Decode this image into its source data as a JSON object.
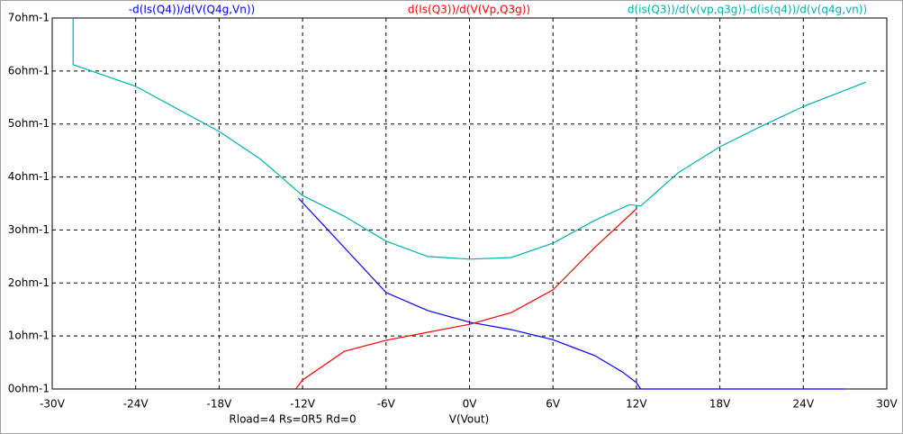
{
  "chart_data": {
    "type": "line",
    "xlabel": "V(Vout)",
    "annotation": "Rload=4 Rs=0R5 Rd=0",
    "xlim": [
      -30,
      30
    ],
    "ylim": [
      0,
      7
    ],
    "xticks": [
      {
        "value": -30,
        "label": "-30V"
      },
      {
        "value": -24,
        "label": "-24V"
      },
      {
        "value": -18,
        "label": "-18V"
      },
      {
        "value": -12,
        "label": "-12V"
      },
      {
        "value": -6,
        "label": "-6V"
      },
      {
        "value": 0,
        "label": "0V"
      },
      {
        "value": 6,
        "label": "6V"
      },
      {
        "value": 12,
        "label": "12V"
      },
      {
        "value": 18,
        "label": "18V"
      },
      {
        "value": 24,
        "label": "24V"
      },
      {
        "value": 30,
        "label": "30V"
      }
    ],
    "yticks": [
      {
        "value": 0,
        "label": "0ohm-1"
      },
      {
        "value": 1,
        "label": "1ohm-1"
      },
      {
        "value": 2,
        "label": "2ohm-1"
      },
      {
        "value": 3,
        "label": "3ohm-1"
      },
      {
        "value": 4,
        "label": "4ohm-1"
      },
      {
        "value": 5,
        "label": "5ohm-1"
      },
      {
        "value": 6,
        "label": "6ohm-1"
      },
      {
        "value": 7,
        "label": "7ohm-1"
      }
    ],
    "grid": true,
    "series": [
      {
        "name": "-d(Is(Q4))/d(V(Q4g,Vn))",
        "color": "#0000ff",
        "x": [
          -12.3,
          -9,
          -6,
          -3,
          0,
          3,
          6,
          9,
          11,
          12,
          12.3,
          20,
          27
        ],
        "values": [
          3.6,
          2.67,
          1.82,
          1.48,
          1.26,
          1.12,
          0.93,
          0.63,
          0.32,
          0.12,
          0,
          0,
          0
        ]
      },
      {
        "name": "d(Is(Q3))/d(V(Vp,Q3g))",
        "color": "#ff0000",
        "x": [
          -12.5,
          -12,
          -9,
          -6,
          -3,
          0,
          3,
          6,
          9,
          12
        ],
        "values": [
          0,
          0.17,
          0.71,
          0.92,
          1.07,
          1.22,
          1.44,
          1.87,
          2.67,
          3.4
        ]
      },
      {
        "name": "d(is(Q3))/d(v(vp,q3g))-d(is(q4))/d(v(q4g,vn))",
        "color": "#00b0b0",
        "x": [
          -28.5,
          -28.5,
          -24,
          -18,
          -15,
          -12,
          -9,
          -6,
          -3,
          0,
          3,
          6,
          9,
          11.5,
          12.3,
          15,
          18,
          21,
          24,
          28.5
        ],
        "values": [
          7,
          6.12,
          5.71,
          4.86,
          4.33,
          3.65,
          3.26,
          2.79,
          2.5,
          2.45,
          2.48,
          2.75,
          3.18,
          3.48,
          3.45,
          4.08,
          4.57,
          4.96,
          5.33,
          5.79
        ]
      }
    ]
  }
}
